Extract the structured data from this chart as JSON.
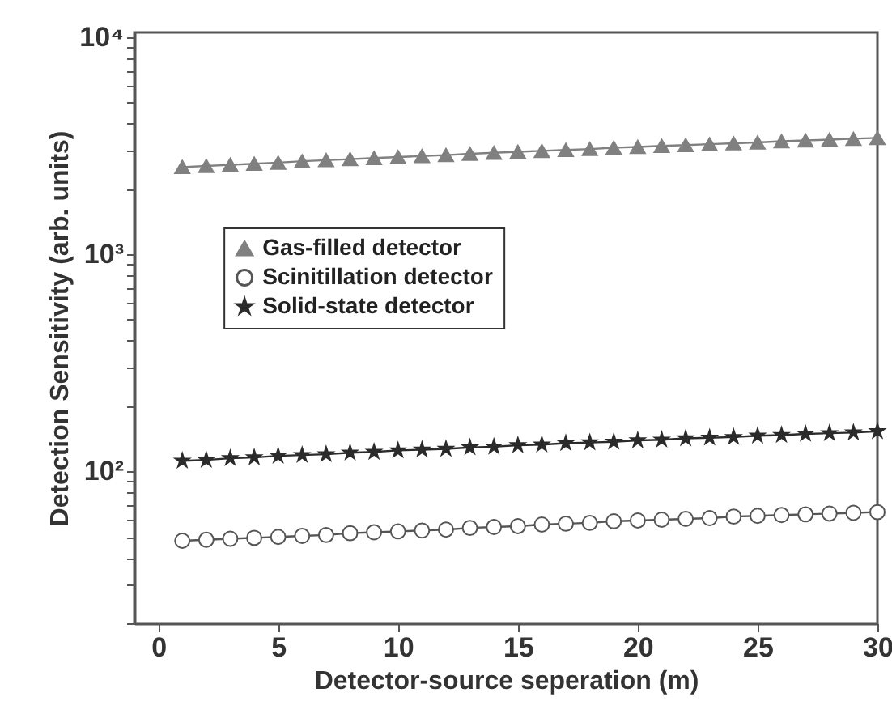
{
  "chart_data": {
    "type": "line",
    "xlabel": "Detector-source seperation (m)",
    "ylabel": "Detection Sensitivity (arb. units)",
    "x": [
      1,
      2,
      3,
      4,
      5,
      6,
      7,
      8,
      9,
      10,
      11,
      12,
      13,
      14,
      15,
      16,
      17,
      18,
      19,
      20,
      21,
      22,
      23,
      24,
      25,
      26,
      27,
      28,
      29,
      30
    ],
    "series": [
      {
        "name": "Gas-filled detector",
        "color": "#808080",
        "marker": "triangle",
        "values": [
          2520,
          2550,
          2580,
          2610,
          2640,
          2680,
          2710,
          2740,
          2770,
          2800,
          2830,
          2860,
          2900,
          2930,
          2960,
          2990,
          3020,
          3050,
          3090,
          3120,
          3150,
          3180,
          3210,
          3240,
          3270,
          3310,
          3340,
          3370,
          3400,
          3430
        ]
      },
      {
        "name": "Scinitillation detector",
        "color": "#555555",
        "marker": "circle",
        "values": [
          48,
          48.5,
          49,
          49.5,
          50,
          50.5,
          51,
          52,
          52.5,
          53,
          53.5,
          54,
          55,
          55.5,
          56,
          57,
          57.5,
          58,
          59,
          59.5,
          60,
          60.5,
          61,
          62,
          62.5,
          63,
          63.5,
          64,
          64.5,
          65
        ]
      },
      {
        "name": "Solid-state detector",
        "color": "#2b2b2b",
        "marker": "star",
        "values": [
          112,
          113,
          115,
          116,
          118,
          119,
          120,
          122,
          123,
          125,
          126,
          127,
          129,
          130,
          132,
          133,
          135,
          136,
          137,
          139,
          140,
          142,
          143,
          144,
          146,
          147,
          149,
          150,
          151,
          153
        ]
      }
    ],
    "log": "y",
    "legend": "left",
    "grid": false,
    "xlim": [
      -1,
      30
    ],
    "xticks": [
      0,
      5,
      10,
      15,
      20,
      25,
      30
    ],
    "ylim": [
      20,
      10500
    ],
    "yticks": [
      {
        "value": 20,
        "label": null
      },
      {
        "value": 30,
        "label": null
      },
      {
        "value": 40,
        "label": null
      },
      {
        "value": 50,
        "label": null
      },
      {
        "value": 60,
        "label": null
      },
      {
        "value": 70,
        "label": null
      },
      {
        "value": 80,
        "label": null
      },
      {
        "value": 90,
        "label": null
      },
      {
        "value": 100,
        "label": "10²"
      },
      {
        "value": 200,
        "label": null
      },
      {
        "value": 300,
        "label": null
      },
      {
        "value": 400,
        "label": null
      },
      {
        "value": 500,
        "label": null
      },
      {
        "value": 600,
        "label": null
      },
      {
        "value": 700,
        "label": null
      },
      {
        "value": 800,
        "label": null
      },
      {
        "value": 900,
        "label": null
      },
      {
        "value": 1000,
        "label": "10³"
      },
      {
        "value": 2000,
        "label": null
      },
      {
        "value": 3000,
        "label": null
      },
      {
        "value": 4000,
        "label": null
      },
      {
        "value": 5000,
        "label": null
      },
      {
        "value": 6000,
        "label": null
      },
      {
        "value": 7000,
        "label": null
      },
      {
        "value": 8000,
        "label": null
      },
      {
        "value": 9000,
        "label": null
      },
      {
        "value": 10000,
        "label": "10⁴"
      }
    ]
  }
}
